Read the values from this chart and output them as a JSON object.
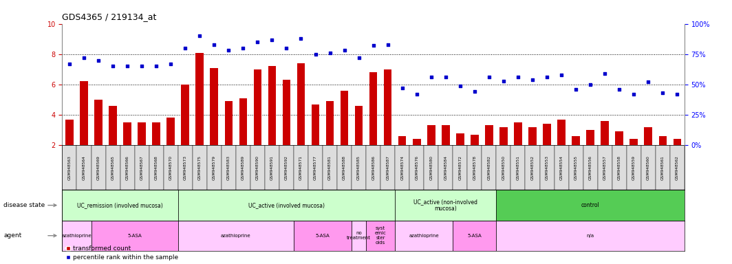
{
  "title": "GDS4365 / 219134_at",
  "samples": [
    "GSM948563",
    "GSM948564",
    "GSM948569",
    "GSM948565",
    "GSM948566",
    "GSM948567",
    "GSM948568",
    "GSM948570",
    "GSM948573",
    "GSM948575",
    "GSM948579",
    "GSM948583",
    "GSM948589",
    "GSM948590",
    "GSM948591",
    "GSM948592",
    "GSM948571",
    "GSM948577",
    "GSM948581",
    "GSM948588",
    "GSM948585",
    "GSM948586",
    "GSM948587",
    "GSM948574",
    "GSM948576",
    "GSM948580",
    "GSM948584",
    "GSM948572",
    "GSM948578",
    "GSM948582",
    "GSM948550",
    "GSM948551",
    "GSM948552",
    "GSM948553",
    "GSM948554",
    "GSM948555",
    "GSM948556",
    "GSM948557",
    "GSM948558",
    "GSM948559",
    "GSM948560",
    "GSM948561",
    "GSM948562"
  ],
  "bar_values": [
    3.7,
    6.2,
    5.0,
    4.6,
    3.5,
    3.5,
    3.5,
    3.8,
    6.0,
    8.1,
    7.1,
    4.9,
    5.1,
    7.0,
    7.2,
    6.3,
    7.4,
    4.7,
    4.9,
    5.6,
    4.6,
    6.8,
    7.0,
    2.6,
    2.4,
    3.3,
    3.3,
    2.8,
    2.7,
    3.3,
    3.2,
    3.5,
    3.2,
    3.4,
    3.7,
    2.6,
    3.0,
    3.6,
    2.9,
    2.4,
    3.2,
    2.6,
    2.4
  ],
  "percentile_values": [
    67,
    72,
    70,
    65,
    65,
    65,
    65,
    67,
    80,
    90,
    83,
    78,
    80,
    85,
    87,
    80,
    88,
    75,
    76,
    78,
    72,
    82,
    83,
    47,
    42,
    56,
    56,
    49,
    44,
    56,
    53,
    56,
    54,
    56,
    58,
    46,
    50,
    59,
    46,
    42,
    52,
    43,
    42
  ],
  "disease_state_groups": [
    {
      "label": "UC_remission (involved mucosa)",
      "start": 0,
      "end": 7,
      "color": "#ccffcc"
    },
    {
      "label": "UC_active (involved mucosa)",
      "start": 8,
      "end": 22,
      "color": "#ccffcc"
    },
    {
      "label": "UC_active (non-involved\nmucosa)",
      "start": 23,
      "end": 29,
      "color": "#ccffcc"
    },
    {
      "label": "control",
      "start": 30,
      "end": 42,
      "color": "#55cc55"
    }
  ],
  "agent_groups": [
    {
      "label": "azathioprine",
      "start": 0,
      "end": 1,
      "color": "#ffccff"
    },
    {
      "label": "5-ASA",
      "start": 2,
      "end": 7,
      "color": "#ff99ee"
    },
    {
      "label": "azathioprine",
      "start": 8,
      "end": 15,
      "color": "#ffccff"
    },
    {
      "label": "5-ASA",
      "start": 16,
      "end": 19,
      "color": "#ff99ee"
    },
    {
      "label": "no\ntreatment",
      "start": 20,
      "end": 20,
      "color": "#ffccff"
    },
    {
      "label": "syst\nemic\nster\noids",
      "start": 21,
      "end": 22,
      "color": "#ff99ee"
    },
    {
      "label": "azathioprine",
      "start": 23,
      "end": 26,
      "color": "#ffccff"
    },
    {
      "label": "5-ASA",
      "start": 27,
      "end": 29,
      "color": "#ff99ee"
    },
    {
      "label": "n/a",
      "start": 30,
      "end": 42,
      "color": "#ffccff"
    }
  ],
  "bar_color": "#cc0000",
  "dot_color": "#0000cc",
  "ytick_color": "#cc0000",
  "ymin": 2,
  "ymax": 10,
  "yticks": [
    2,
    4,
    6,
    8,
    10
  ],
  "right_yticks": [
    0,
    25,
    50,
    75,
    100
  ],
  "background_color": "#ffffff",
  "plot_bg_color": "#ffffff",
  "xtick_bg_color": "#dddddd"
}
